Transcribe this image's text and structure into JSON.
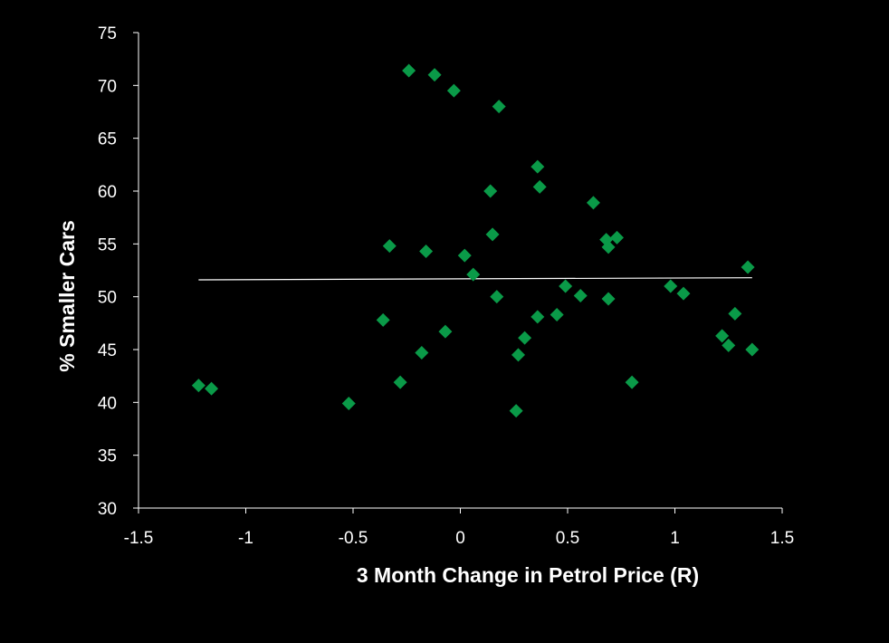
{
  "chart_data": {
    "type": "scatter",
    "title": "",
    "xlabel": "3 Month Change in Petrol Price (R)",
    "ylabel": "% Smaller Cars",
    "xlim": [
      -1.5,
      1.5
    ],
    "ylim": [
      30,
      75
    ],
    "xticks": [
      -1.5,
      -1,
      -0.5,
      0,
      0.5,
      1,
      1.5
    ],
    "yticks": [
      30,
      35,
      40,
      45,
      50,
      55,
      60,
      65,
      70,
      75
    ],
    "xtick_labels": [
      "-1.5",
      "-1",
      "-0.5",
      "0",
      "0.5",
      "1",
      "1.5"
    ],
    "ytick_labels": [
      "30",
      "35",
      "40",
      "45",
      "50",
      "55",
      "60",
      "65",
      "70",
      "75"
    ],
    "grid": false,
    "legend": "none",
    "marker": "diamond",
    "marker_color": "#0a9a48",
    "trendline_color": "#ffffff",
    "axis_color": "#ffffff",
    "background": "#000000",
    "points": [
      {
        "x": -1.22,
        "y": 41.6
      },
      {
        "x": -1.16,
        "y": 41.3
      },
      {
        "x": -0.52,
        "y": 39.9
      },
      {
        "x": -0.36,
        "y": 47.8
      },
      {
        "x": -0.33,
        "y": 54.8
      },
      {
        "x": -0.28,
        "y": 41.9
      },
      {
        "x": -0.24,
        "y": 71.4
      },
      {
        "x": -0.18,
        "y": 44.7
      },
      {
        "x": -0.16,
        "y": 54.3
      },
      {
        "x": -0.12,
        "y": 71.0
      },
      {
        "x": -0.07,
        "y": 46.7
      },
      {
        "x": -0.03,
        "y": 69.5
      },
      {
        "x": 0.02,
        "y": 53.9
      },
      {
        "x": 0.06,
        "y": 52.1
      },
      {
        "x": 0.14,
        "y": 60.0
      },
      {
        "x": 0.15,
        "y": 55.9
      },
      {
        "x": 0.17,
        "y": 50.0
      },
      {
        "x": 0.18,
        "y": 68.0
      },
      {
        "x": 0.26,
        "y": 39.2
      },
      {
        "x": 0.27,
        "y": 44.5
      },
      {
        "x": 0.3,
        "y": 46.1
      },
      {
        "x": 0.36,
        "y": 48.1
      },
      {
        "x": 0.36,
        "y": 62.3
      },
      {
        "x": 0.37,
        "y": 60.4
      },
      {
        "x": 0.45,
        "y": 48.3
      },
      {
        "x": 0.49,
        "y": 51.0
      },
      {
        "x": 0.56,
        "y": 50.1
      },
      {
        "x": 0.62,
        "y": 58.9
      },
      {
        "x": 0.68,
        "y": 55.4
      },
      {
        "x": 0.69,
        "y": 54.7
      },
      {
        "x": 0.69,
        "y": 49.8
      },
      {
        "x": 0.73,
        "y": 55.6
      },
      {
        "x": 0.8,
        "y": 41.9
      },
      {
        "x": 0.98,
        "y": 51.0
      },
      {
        "x": 1.04,
        "y": 50.3
      },
      {
        "x": 1.22,
        "y": 46.3
      },
      {
        "x": 1.25,
        "y": 45.4
      },
      {
        "x": 1.28,
        "y": 48.4
      },
      {
        "x": 1.34,
        "y": 52.8
      },
      {
        "x": 1.36,
        "y": 45.0
      }
    ],
    "trendline": {
      "x": [
        -1.22,
        1.36
      ],
      "y": [
        51.6,
        51.8
      ]
    }
  }
}
